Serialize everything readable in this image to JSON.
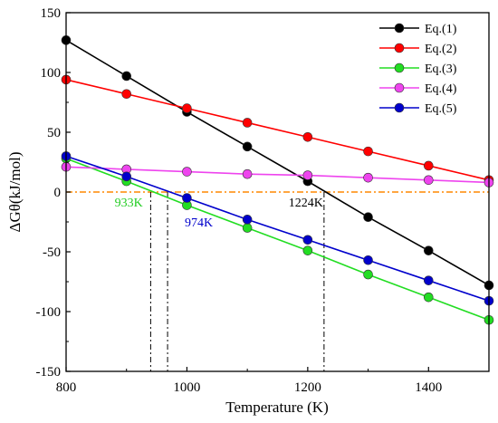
{
  "chart_data": {
    "type": "line",
    "xlabel": "Temperature (K)",
    "ylabel": "ΔGθ(kJ/mol)",
    "xlim": [
      800,
      1500
    ],
    "ylim": [
      -150,
      150
    ],
    "xticks": [
      800,
      1000,
      1200,
      1400
    ],
    "yticks": [
      -150,
      -100,
      -50,
      0,
      50,
      100,
      150
    ],
    "x": [
      800,
      900,
      1000,
      1100,
      1200,
      1300,
      1400,
      1500
    ],
    "legend_position": "top-right",
    "grid": false,
    "series": [
      {
        "name": "Eq.(1)",
        "color": "#000000",
        "values": [
          127,
          97,
          67,
          38,
          9,
          -21,
          -49,
          -78
        ]
      },
      {
        "name": "Eq.(2)",
        "color": "#ff0000",
        "values": [
          94,
          82,
          70,
          58,
          46,
          34,
          22,
          10
        ]
      },
      {
        "name": "Eq.(3)",
        "color": "#22dd22",
        "values": [
          28,
          9,
          -11,
          -30,
          -49,
          -69,
          -88,
          -107
        ]
      },
      {
        "name": "Eq.(4)",
        "color": "#ee44ee",
        "values": [
          21,
          19,
          17,
          15,
          14,
          12,
          10,
          8
        ]
      },
      {
        "name": "Eq.(5)",
        "color": "#0000cc",
        "values": [
          30,
          13,
          -5,
          -23,
          -40,
          -57,
          -74,
          -91
        ]
      }
    ],
    "zero_line_color": "#ff8800",
    "annotations": [
      {
        "text": "933K",
        "x": 933,
        "color": "#22cc22"
      },
      {
        "text": "974K",
        "x": 974,
        "color": "#0000cc"
      },
      {
        "text": "1224K",
        "x": 1224,
        "color": "#000000"
      }
    ],
    "guide_lines_x": [
      940,
      968,
      1227
    ]
  }
}
